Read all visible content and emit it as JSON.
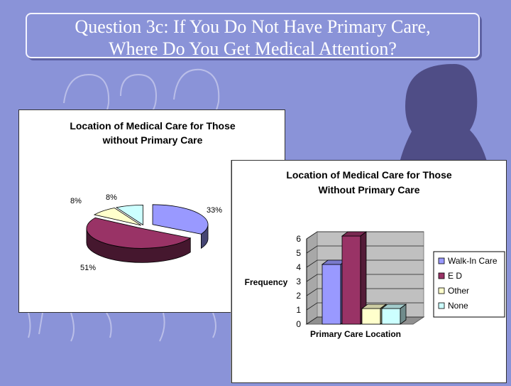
{
  "slide": {
    "title_line1": "Question 3c: If You Do Not Have Primary Care,",
    "title_line2": "Where Do You Get Medical Attention?"
  },
  "colors": {
    "background": "#8a93d8",
    "silhouette": "#4f4d86",
    "walk_in": "#9999ff",
    "ed": "#993366",
    "other": "#ffffcc",
    "none": "#ccffff"
  },
  "chart_data": [
    {
      "type": "pie",
      "title_line1": "Location of Medical Care for Those",
      "title_line2": "without Primary Care",
      "slices": [
        {
          "category": "Walk-In Care",
          "value": 33,
          "label": "33%"
        },
        {
          "category": "E D",
          "value": 51,
          "label": "51%"
        },
        {
          "category": "Other",
          "value": 8,
          "label": "8%"
        },
        {
          "category": "None",
          "value": 8,
          "label": "8%"
        }
      ],
      "style": "3d"
    },
    {
      "type": "bar",
      "title_line1": "Location of Medical Care for Those",
      "title_line2": "Without Primary Care",
      "xlabel": "Primary Care Location",
      "ylabel": "Frequency",
      "ylim": [
        0,
        6
      ],
      "yticks": [
        0,
        1,
        2,
        3,
        4,
        5,
        6
      ],
      "categories": [
        "Walk-In Care",
        "E D",
        "Other",
        "None"
      ],
      "values": [
        4.2,
        6.2,
        1.1,
        1.1
      ],
      "legend": [
        "Walk-In Care",
        "E D",
        "Other",
        "None"
      ],
      "legend_position": "right",
      "style": "3d"
    }
  ]
}
